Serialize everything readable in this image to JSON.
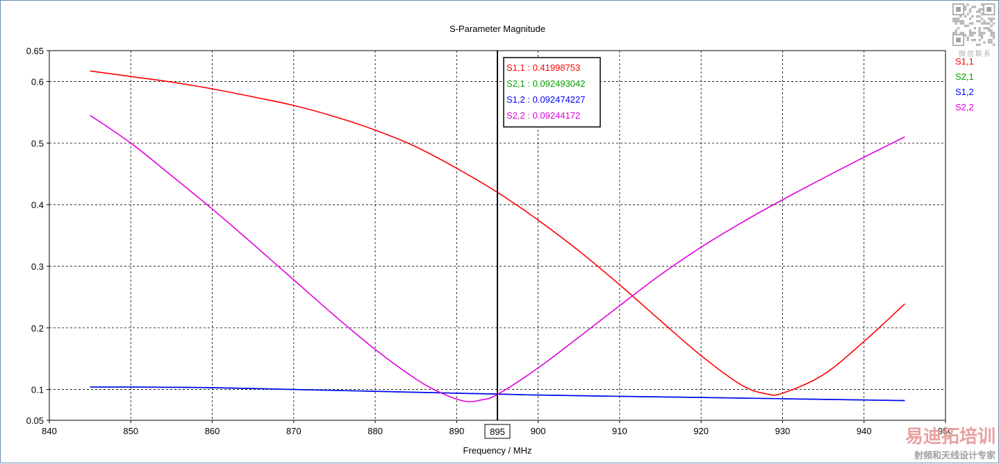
{
  "chart_data": {
    "type": "line",
    "title": "S-Parameter Magnitude",
    "xlabel": "Frequency / MHz",
    "ylabel": "",
    "xlim": [
      840,
      950
    ],
    "ylim": [
      0.05,
      0.65
    ],
    "x_ticks": [
      840,
      850,
      860,
      870,
      880,
      890,
      900,
      910,
      920,
      930,
      940,
      950
    ],
    "y_ticks": [
      0.05,
      0.1,
      0.2,
      0.3,
      0.4,
      0.5,
      0.6,
      0.65
    ],
    "y_tick_labels": [
      "0.05",
      "0.1",
      "0.2",
      "0.3",
      "0.4",
      "0.5",
      "0.6",
      "0.65"
    ],
    "grid": true,
    "legend_position": "right",
    "marker": {
      "x": 895,
      "label": "895",
      "readouts": [
        {
          "name": "S1,1",
          "value": "0.41998753"
        },
        {
          "name": "S2,1",
          "value": "0.092493042"
        },
        {
          "name": "S1,2",
          "value": "0.092474227"
        },
        {
          "name": "S2,2",
          "value": "0.09244172"
        }
      ]
    },
    "series": [
      {
        "name": "S1,1",
        "color": "#ff0000",
        "x": [
          845,
          850,
          855,
          860,
          865,
          870,
          875,
          880,
          885,
          890,
          895,
          900,
          905,
          910,
          915,
          920,
          925,
          928,
          930,
          935,
          940,
          945
        ],
        "values": [
          0.617,
          0.608,
          0.599,
          0.588,
          0.575,
          0.561,
          0.543,
          0.521,
          0.494,
          0.459,
          0.42,
          0.375,
          0.325,
          0.27,
          0.212,
          0.155,
          0.107,
          0.093,
          0.094,
          0.124,
          0.178,
          0.239
        ]
      },
      {
        "name": "S2,1",
        "color": "#00a000",
        "x": [
          845,
          850,
          860,
          870,
          880,
          890,
          895,
          900,
          910,
          920,
          930,
          940,
          945
        ],
        "values": [
          0.104,
          0.104,
          0.103,
          0.1,
          0.097,
          0.094,
          0.0925,
          0.091,
          0.089,
          0.087,
          0.085,
          0.083,
          0.082
        ]
      },
      {
        "name": "S1,2",
        "color": "#0000ff",
        "x": [
          845,
          850,
          860,
          870,
          880,
          890,
          895,
          900,
          910,
          920,
          930,
          940,
          945
        ],
        "values": [
          0.104,
          0.104,
          0.103,
          0.1,
          0.097,
          0.094,
          0.0925,
          0.091,
          0.089,
          0.087,
          0.085,
          0.083,
          0.082
        ]
      },
      {
        "name": "S2,2",
        "color": "#dd00dd",
        "x": [
          845,
          850,
          855,
          860,
          865,
          870,
          875,
          880,
          885,
          888,
          891,
          893,
          895,
          900,
          905,
          910,
          915,
          920,
          925,
          930,
          935,
          940,
          945
        ],
        "values": [
          0.545,
          0.5,
          0.447,
          0.393,
          0.336,
          0.278,
          0.22,
          0.165,
          0.117,
          0.095,
          0.081,
          0.083,
          0.092,
          0.135,
          0.185,
          0.236,
          0.286,
          0.331,
          0.371,
          0.408,
          0.443,
          0.477,
          0.51
        ]
      }
    ]
  },
  "watermark": {
    "qr_caption": "微信联系",
    "brand": "易迪拓培训",
    "tagline": "射频和天线设计专家"
  }
}
